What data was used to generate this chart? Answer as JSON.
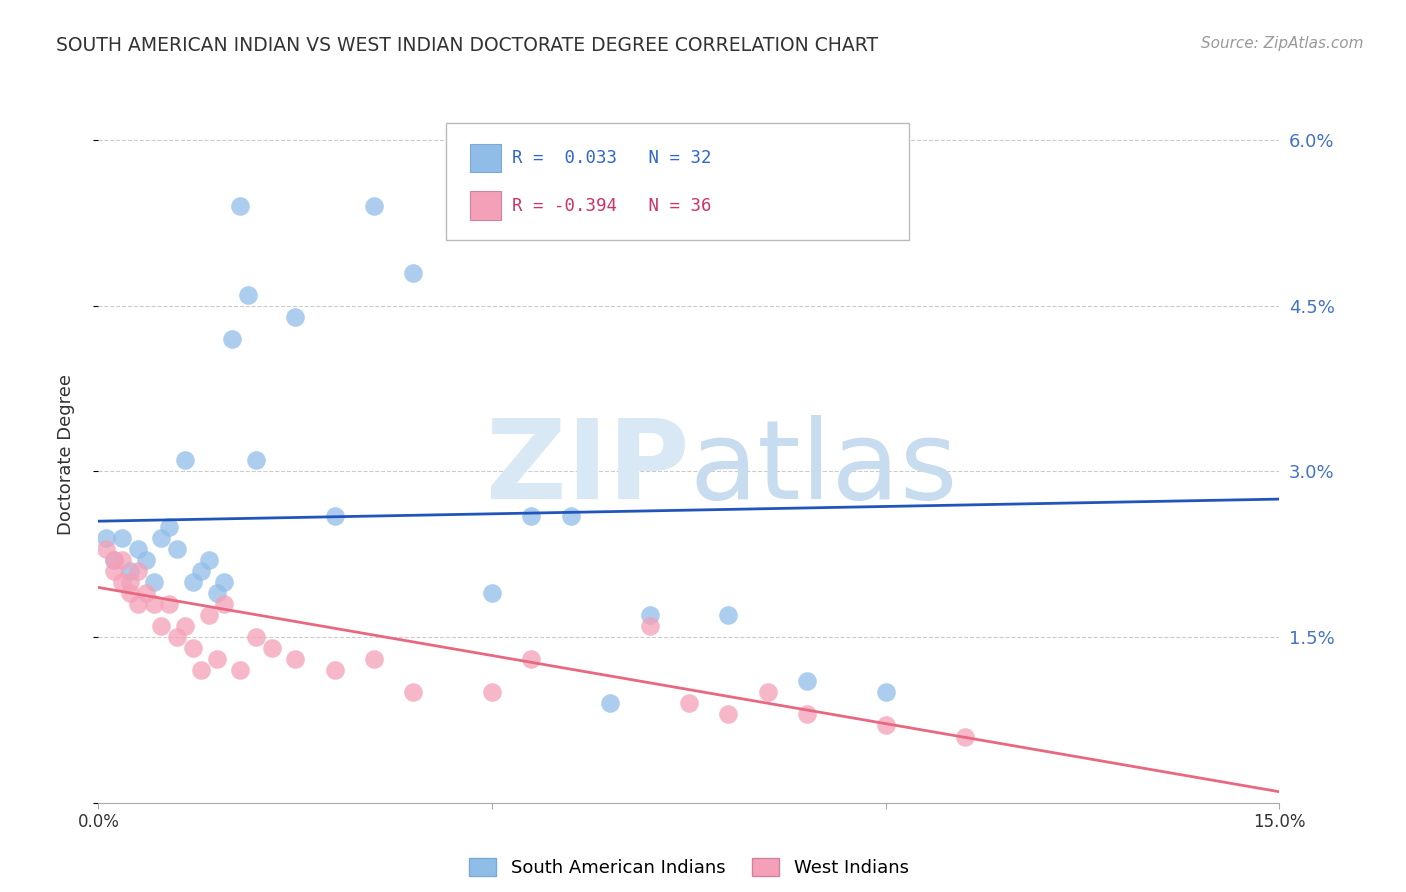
{
  "title": "SOUTH AMERICAN INDIAN VS WEST INDIAN DOCTORATE DEGREE CORRELATION CHART",
  "source": "Source: ZipAtlas.com",
  "ylabel": "Doctorate Degree",
  "yticks": [
    0.0,
    0.015,
    0.03,
    0.045,
    0.06
  ],
  "ytick_labels": [
    "",
    "1.5%",
    "3.0%",
    "4.5%",
    "6.0%"
  ],
  "xlim": [
    0.0,
    0.15
  ],
  "ylim": [
    0.0,
    0.063
  ],
  "south_american_x": [
    0.001,
    0.002,
    0.003,
    0.004,
    0.005,
    0.006,
    0.007,
    0.008,
    0.009,
    0.01,
    0.011,
    0.012,
    0.013,
    0.014,
    0.015,
    0.016,
    0.017,
    0.018,
    0.019,
    0.02,
    0.025,
    0.03,
    0.035,
    0.04,
    0.05,
    0.055,
    0.06,
    0.065,
    0.07,
    0.08,
    0.09,
    0.1
  ],
  "south_american_y": [
    0.024,
    0.022,
    0.024,
    0.021,
    0.023,
    0.022,
    0.02,
    0.024,
    0.025,
    0.023,
    0.031,
    0.02,
    0.021,
    0.022,
    0.019,
    0.02,
    0.042,
    0.054,
    0.046,
    0.031,
    0.044,
    0.026,
    0.054,
    0.048,
    0.019,
    0.026,
    0.026,
    0.009,
    0.017,
    0.017,
    0.011,
    0.01
  ],
  "west_indian_x": [
    0.001,
    0.002,
    0.002,
    0.003,
    0.003,
    0.004,
    0.004,
    0.005,
    0.005,
    0.006,
    0.007,
    0.008,
    0.009,
    0.01,
    0.011,
    0.012,
    0.013,
    0.014,
    0.015,
    0.016,
    0.018,
    0.02,
    0.022,
    0.025,
    0.03,
    0.035,
    0.04,
    0.05,
    0.055,
    0.07,
    0.075,
    0.08,
    0.085,
    0.09,
    0.1,
    0.11
  ],
  "west_indian_y": [
    0.023,
    0.022,
    0.021,
    0.02,
    0.022,
    0.02,
    0.019,
    0.021,
    0.018,
    0.019,
    0.018,
    0.016,
    0.018,
    0.015,
    0.016,
    0.014,
    0.012,
    0.017,
    0.013,
    0.018,
    0.012,
    0.015,
    0.014,
    0.013,
    0.012,
    0.013,
    0.01,
    0.01,
    0.013,
    0.016,
    0.009,
    0.008,
    0.01,
    0.008,
    0.007,
    0.006
  ],
  "blue_line_x": [
    0.0,
    0.15
  ],
  "blue_line_y": [
    0.0255,
    0.0275
  ],
  "pink_line_x": [
    0.0,
    0.15
  ],
  "pink_line_y": [
    0.0195,
    0.001
  ],
  "scatter_color_blue": "#90BDE8",
  "scatter_color_pink": "#F4A0B8",
  "line_color_blue": "#2255BB",
  "line_color_pink": "#E86880",
  "background_color": "#FFFFFF",
  "grid_color": "#CCCCCC",
  "legend_R1": "R =  0.033   N = 32",
  "legend_R2": "R = -0.394   N = 36",
  "legend_color1": "#3366CC",
  "legend_color2": "#CC3366",
  "bottom_legend_blue": "South American Indians",
  "bottom_legend_pink": "West Indians"
}
